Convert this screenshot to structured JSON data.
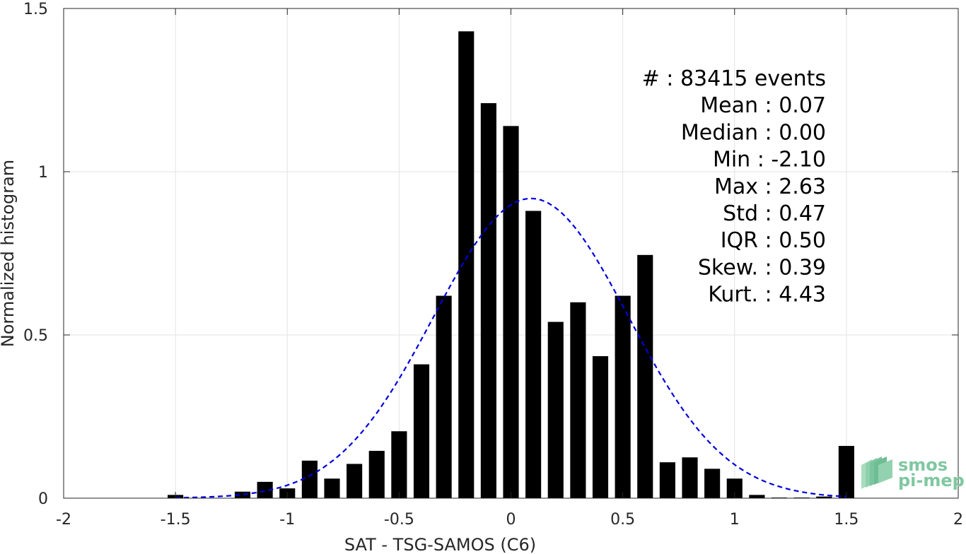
{
  "chart_data": {
    "type": "bar",
    "xlabel": "SAT - TSG-SAMOS (C6)",
    "ylabel": "Normalized histogram",
    "xlim": [
      -2,
      2
    ],
    "ylim": [
      0,
      1.5
    ],
    "x_ticks": [
      -2,
      -1.5,
      -1,
      -0.5,
      0,
      0.5,
      1,
      1.5,
      2
    ],
    "x_tick_labels": [
      "-2",
      "-1.5",
      "-1",
      "-0.5",
      "0",
      "0.5",
      "1",
      "1.5",
      "2"
    ],
    "y_ticks": [
      0,
      0.5,
      1,
      1.5
    ],
    "y_tick_labels": [
      "0",
      "0.5",
      "1",
      "1.5"
    ],
    "grid": true,
    "bar_width": 0.07,
    "bars": [
      {
        "x": -1.5,
        "y": 0.01
      },
      {
        "x": -1.2,
        "y": 0.02
      },
      {
        "x": -1.1,
        "y": 0.05
      },
      {
        "x": -1.0,
        "y": 0.03
      },
      {
        "x": -0.9,
        "y": 0.115
      },
      {
        "x": -0.8,
        "y": 0.06
      },
      {
        "x": -0.7,
        "y": 0.105
      },
      {
        "x": -0.6,
        "y": 0.145
      },
      {
        "x": -0.5,
        "y": 0.205
      },
      {
        "x": -0.4,
        "y": 0.41
      },
      {
        "x": -0.3,
        "y": 0.62
      },
      {
        "x": -0.2,
        "y": 1.43
      },
      {
        "x": -0.1,
        "y": 1.21
      },
      {
        "x": 0.0,
        "y": 1.14
      },
      {
        "x": 0.1,
        "y": 0.88
      },
      {
        "x": 0.2,
        "y": 0.54
      },
      {
        "x": 0.3,
        "y": 0.6
      },
      {
        "x": 0.4,
        "y": 0.435
      },
      {
        "x": 0.5,
        "y": 0.62
      },
      {
        "x": 0.6,
        "y": 0.745
      },
      {
        "x": 0.7,
        "y": 0.11
      },
      {
        "x": 0.8,
        "y": 0.125
      },
      {
        "x": 0.9,
        "y": 0.09
      },
      {
        "x": 1.0,
        "y": 0.06
      },
      {
        "x": 1.1,
        "y": 0.01
      },
      {
        "x": 1.2,
        "y": 0.002
      },
      {
        "x": 1.3,
        "y": 0.002
      },
      {
        "x": 1.4,
        "y": 0.005
      },
      {
        "x": 1.5,
        "y": 0.16
      }
    ],
    "fit_curve": {
      "style": "dashed",
      "color": "#0000dd",
      "mean": 0.09,
      "std": 0.435,
      "peak": 0.918,
      "x_range": [
        -1.5,
        1.5
      ]
    },
    "stats_lines": [
      "#  : 83415 events",
      "Mean : 0.07",
      "Median : 0.00",
      "Min : -2.10",
      "Max : 2.63",
      "Std : 0.47",
      "IQR : 0.50",
      "Skew. : 0.39",
      "Kurt. : 4.43"
    ],
    "bar_color": "#000000"
  },
  "logo": {
    "line1": "smos",
    "line2": "pi-mep"
  }
}
